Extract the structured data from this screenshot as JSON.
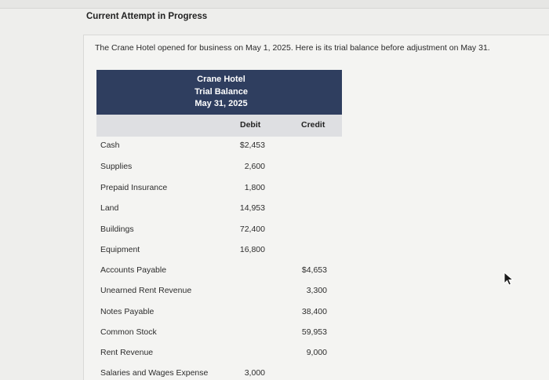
{
  "header": {
    "attempt_label": "Current Attempt in Progress"
  },
  "problem": {
    "intro": "The Crane Hotel opened for business on May 1, 2025. Here is its trial balance before adjustment on May 31."
  },
  "trial_balance": {
    "company": "Crane Hotel",
    "title": "Trial Balance",
    "date": "May 31, 2025",
    "columns": {
      "debit": "Debit",
      "credit": "Credit"
    },
    "rows": [
      {
        "account": "Cash",
        "debit": "$2,453",
        "credit": ""
      },
      {
        "account": "Supplies",
        "debit": "2,600",
        "credit": ""
      },
      {
        "account": "Prepaid Insurance",
        "debit": "1,800",
        "credit": ""
      },
      {
        "account": "Land",
        "debit": "14,953",
        "credit": ""
      },
      {
        "account": "Buildings",
        "debit": "72,400",
        "credit": ""
      },
      {
        "account": "Equipment",
        "debit": "16,800",
        "credit": ""
      },
      {
        "account": "Accounts Payable",
        "debit": "",
        "credit": "$4,653"
      },
      {
        "account": "Unearned Rent Revenue",
        "debit": "",
        "credit": "3,300"
      },
      {
        "account": "Notes Payable",
        "debit": "",
        "credit": "38,400"
      },
      {
        "account": "Common Stock",
        "debit": "",
        "credit": "59,953"
      },
      {
        "account": "Rent Revenue",
        "debit": "",
        "credit": "9,000"
      },
      {
        "account": "Salaries and Wages Expense",
        "debit": "3,000",
        "credit": ""
      }
    ]
  },
  "icons": {
    "cursor": "mouse-pointer-icon"
  }
}
